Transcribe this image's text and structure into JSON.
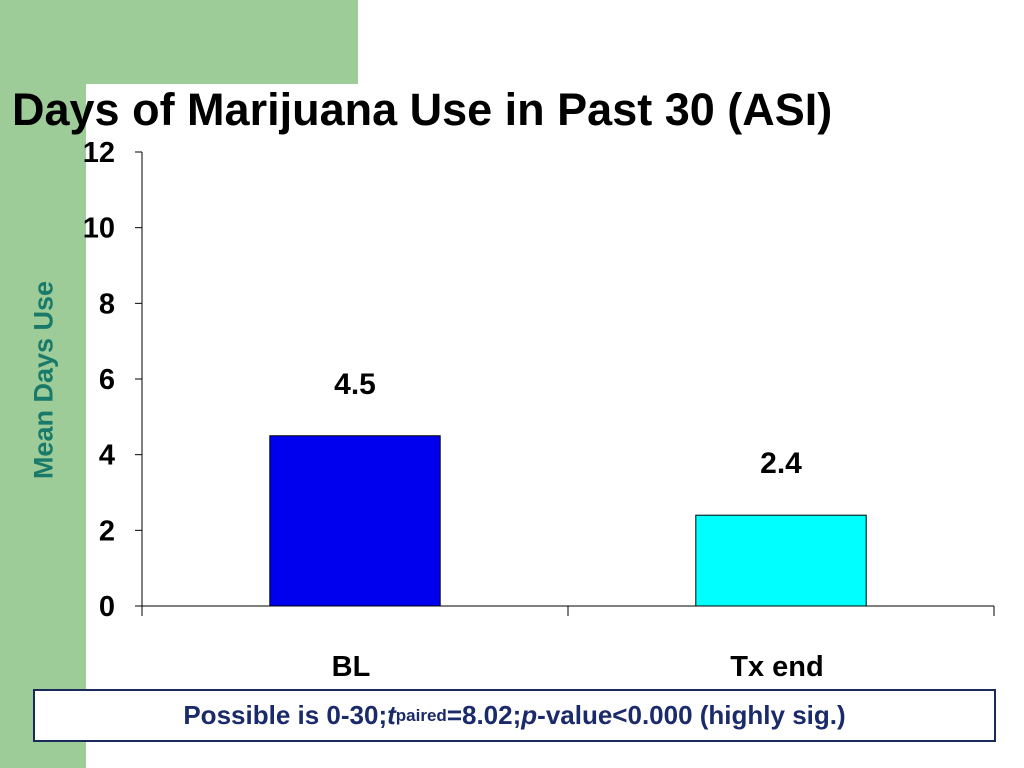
{
  "theme": {
    "accent": "#9ecc98",
    "ylabel_color": "#1a7a6a",
    "note_text_color": "#1a2a6a",
    "note_border": "#1a2a5a"
  },
  "chart_data": {
    "type": "bar",
    "title": "Days of Marijuana Use in Past 30 (ASI)",
    "ylabel": "Mean Days Use",
    "xlabel": "",
    "categories": [
      "BL",
      "Tx end"
    ],
    "values": [
      4.5,
      2.4
    ],
    "data_labels": [
      "4.5",
      "2.4"
    ],
    "colors": [
      "#0000ee",
      "#00ffff"
    ],
    "ylim": [
      0,
      12
    ],
    "yticks": [
      0,
      2,
      4,
      6,
      8,
      10,
      12
    ],
    "grid": false,
    "legend": "none"
  },
  "note": {
    "prefix": "Possible is 0-30; ",
    "t_symbol": "t",
    "t_subscript": "paired",
    "t_value": "=8.02; ",
    "p_symbol": "p",
    "p_value": "-value<0.000 (highly sig.)"
  }
}
